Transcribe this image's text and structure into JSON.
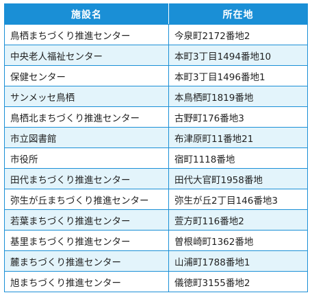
{
  "table": {
    "headers": [
      "施設名",
      "所在地"
    ],
    "rows": [
      {
        "name": "鳥栖まちづくり推進センター",
        "address": "今泉町2172番地2"
      },
      {
        "name": "中央老人福祉センター",
        "address": "本町3丁目1494番地10"
      },
      {
        "name": "保健センター",
        "address": "本町3丁目1496番地1"
      },
      {
        "name": "サンメッセ鳥栖",
        "address": "本鳥栖町1819番地"
      },
      {
        "name": "鳥栖北まちづくり推進センター",
        "address": "古野町176番地3"
      },
      {
        "name": "市立図書館",
        "address": "布津原町11番地21"
      },
      {
        "name": "市役所",
        "address": "宿町1118番地"
      },
      {
        "name": "田代まちづくり推進センター",
        "address": "田代大官町1958番地"
      },
      {
        "name": "弥生が丘まちづくり推進センター",
        "address": "弥生が丘2丁目146番地3"
      },
      {
        "name": "若葉まちづくり推進センター",
        "address": "萱方町116番地2"
      },
      {
        "name": "基里まちづくり推進センター",
        "address": "曽根崎町1362番地"
      },
      {
        "name": "麓まちづくり推進センター",
        "address": "山浦町1788番地1"
      },
      {
        "name": "旭まちづくり推進センター",
        "address": "儀徳町3155番地2"
      }
    ]
  },
  "colors": {
    "header_bg": "#1a8fd6",
    "stripe_bg": "#e3f4fb",
    "border": "#1a8fd6"
  }
}
